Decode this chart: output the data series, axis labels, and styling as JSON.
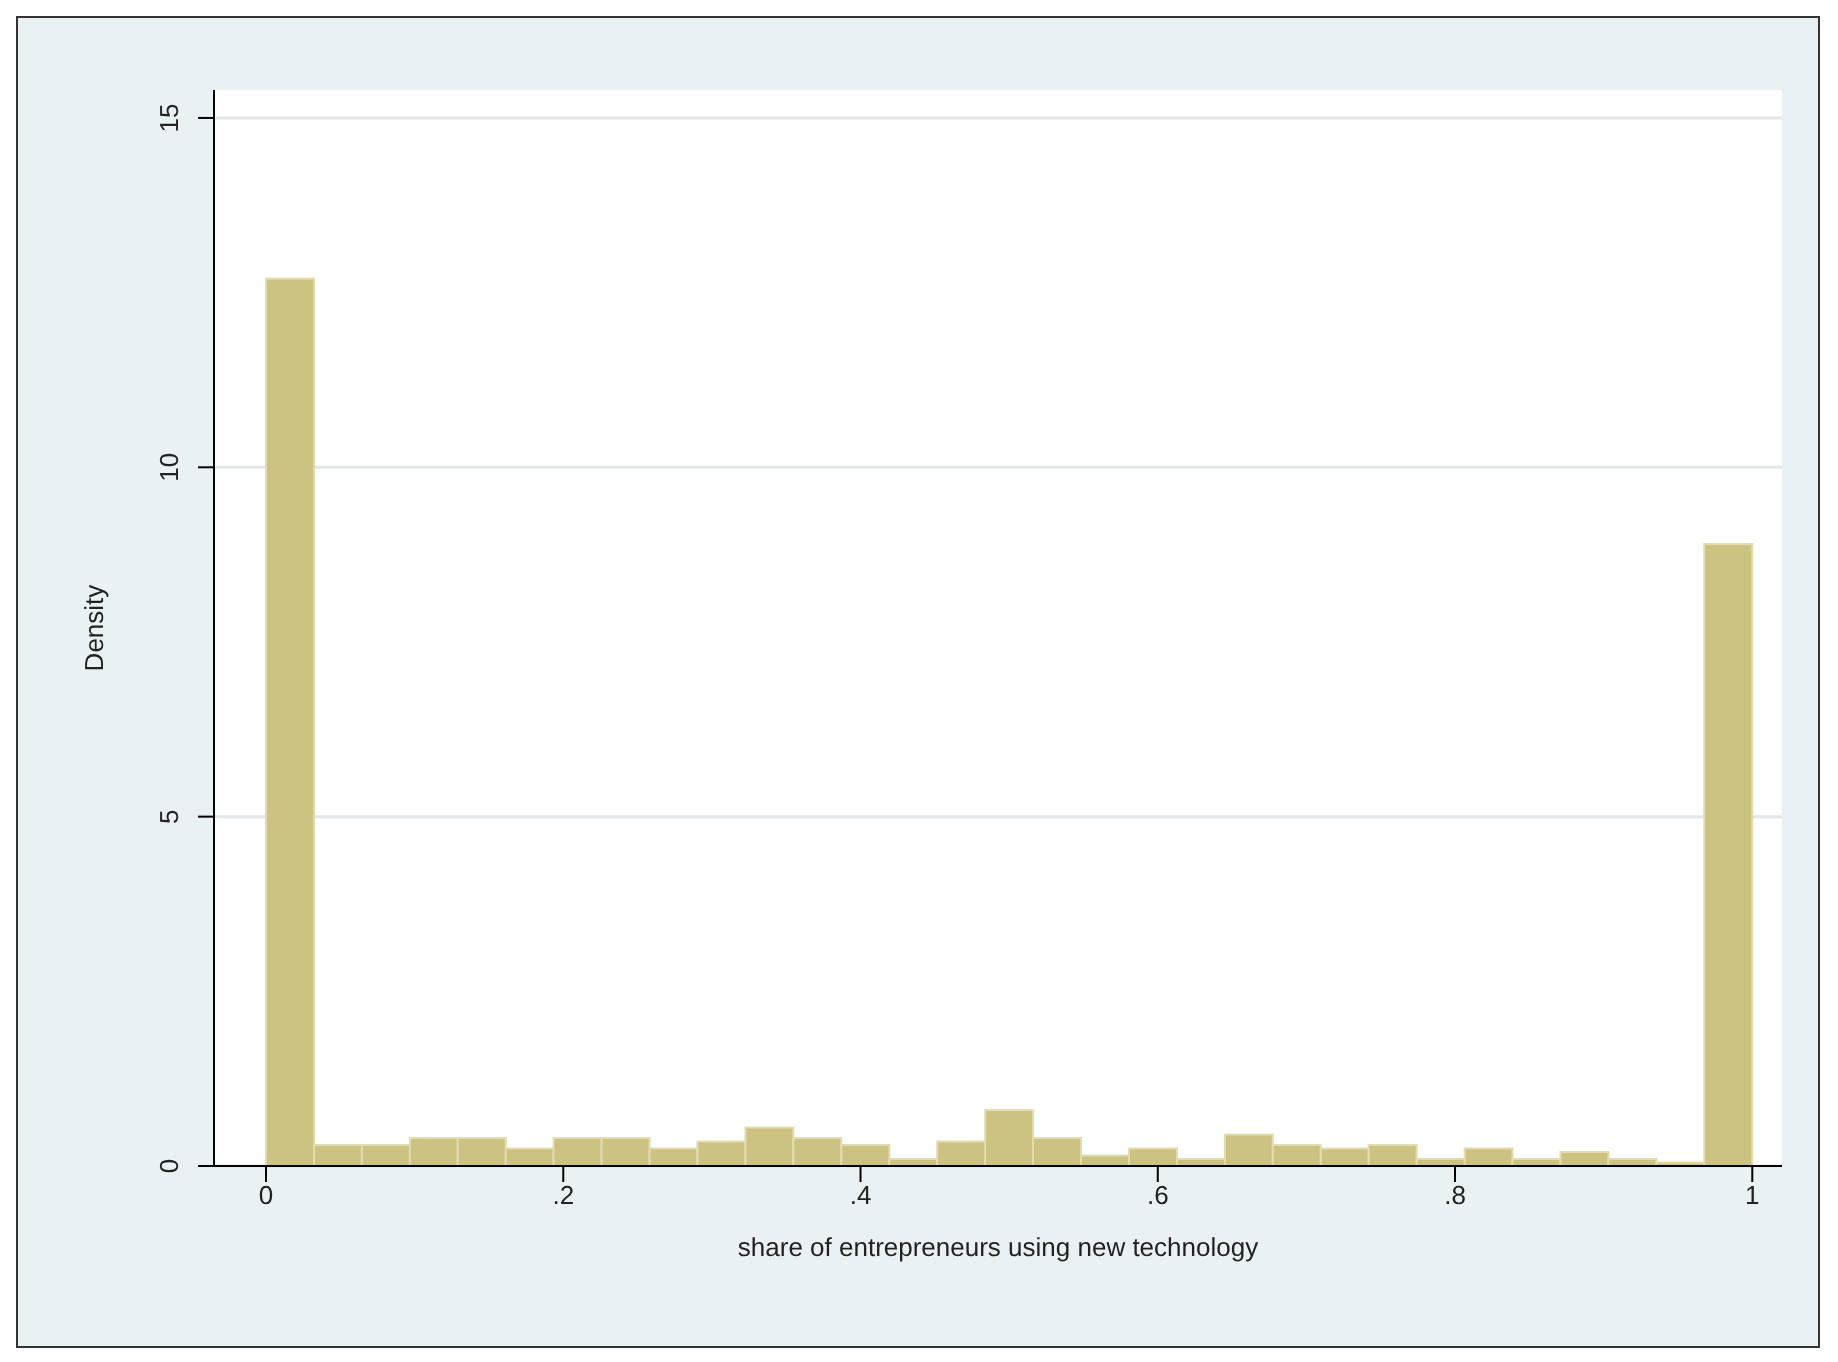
{
  "chart_data": {
    "type": "histogram",
    "xlabel": "share of entrepreneurs using new technology",
    "ylabel": "Density",
    "bins": [
      0,
      0.0323,
      0.0645,
      0.0968,
      0.129,
      0.1613,
      0.1935,
      0.2258,
      0.2581,
      0.2903,
      0.3226,
      0.3548,
      0.3871,
      0.4194,
      0.4516,
      0.4839,
      0.5161,
      0.5484,
      0.5806,
      0.6129,
      0.6452,
      0.6774,
      0.7097,
      0.7419,
      0.7742,
      0.8065,
      0.8387,
      0.871,
      0.9032,
      0.9355,
      0.9677,
      1
    ],
    "values": [
      12.7,
      0.3,
      0.3,
      0.4,
      0.4,
      0.25,
      0.4,
      0.4,
      0.25,
      0.35,
      0.55,
      0.4,
      0.3,
      0.1,
      0.35,
      0.8,
      0.4,
      0.15,
      0.25,
      0.1,
      0.45,
      0.3,
      0.25,
      0.3,
      0.1,
      0.25,
      0.1,
      0.2,
      0.1,
      0.05,
      8.9
    ],
    "color": "#ccc281",
    "xlim": [
      -0.035,
      1.02
    ],
    "ylim": [
      0,
      15.4
    ],
    "xticks": [
      0,
      {
        "value": 0.2,
        "label": ".2"
      },
      {
        "value": 0.4,
        "label": ".4"
      },
      {
        "value": 0.6,
        "label": ".6"
      },
      {
        "value": 0.8,
        "label": ".8"
      },
      1
    ],
    "yticks": [
      0,
      5,
      10,
      15
    ],
    "grid": "y"
  }
}
